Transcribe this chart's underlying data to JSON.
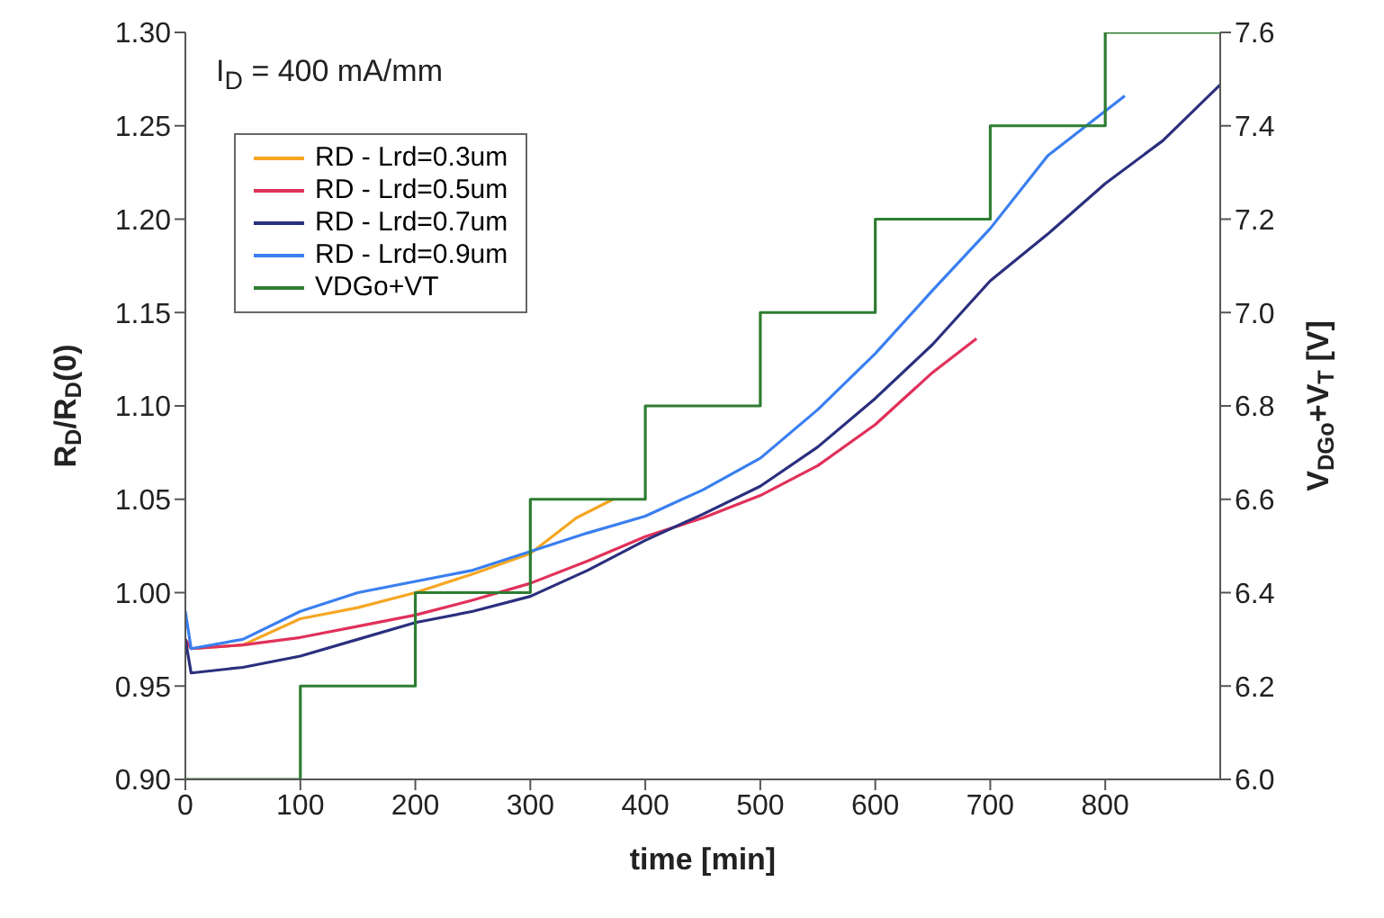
{
  "chart_data": {
    "type": "line",
    "xlabel": "time [min]",
    "ylabel": "R$_{D}$/R$_{D}$(0)",
    "y2label": "V$_{DGo}$+V$_{T}$  [V]",
    "annotations": [
      "I$_{D}$ = 400 mA/mm"
    ],
    "xlim": [
      0,
      900
    ],
    "xticks": [
      0,
      100,
      200,
      300,
      400,
      500,
      600,
      700,
      800
    ],
    "ylim": [
      0.9,
      1.3
    ],
    "yticks": [
      {
        "value": 0.9,
        "label": "0.90"
      },
      {
        "value": 0.95,
        "label": "0.95"
      },
      {
        "value": 1.0,
        "label": "1.00"
      },
      {
        "value": 1.05,
        "label": "1.05"
      },
      {
        "value": 1.1,
        "label": "1.10"
      },
      {
        "value": 1.15,
        "label": "1.15"
      },
      {
        "value": 1.2,
        "label": "1.20"
      },
      {
        "value": 1.25,
        "label": "1.25"
      },
      {
        "value": 1.3,
        "label": "1.30"
      }
    ],
    "y2lim": [
      6.0,
      7.6
    ],
    "y2ticks": [
      {
        "value": 6.0,
        "label": "6.0"
      },
      {
        "value": 6.2,
        "label": "6.2"
      },
      {
        "value": 6.4,
        "label": "6.4"
      },
      {
        "value": 6.6,
        "label": "6.6"
      },
      {
        "value": 6.8,
        "label": "6.8"
      },
      {
        "value": 7.0,
        "label": "7.0"
      },
      {
        "value": 7.2,
        "label": "7.2"
      },
      {
        "value": 7.4,
        "label": "7.4"
      },
      {
        "value": 7.6,
        "label": "7.6"
      }
    ],
    "grid": false,
    "legend": "top left",
    "marker": "none",
    "line_style": "solid",
    "series": [
      {
        "name": "RD - Lrd=0.3um",
        "color": "#f5a623",
        "x": [
          0,
          5,
          50,
          100,
          150,
          200,
          250,
          300,
          340,
          372
        ],
        "values": [
          0.975,
          0.97,
          0.972,
          0.986,
          0.992,
          1.0,
          1.01,
          1.021,
          1.04,
          1.05
        ]
      },
      {
        "name": "RD - Lrd=0.5um",
        "color": "#e0315a",
        "x": [
          0,
          5,
          50,
          100,
          150,
          200,
          250,
          300,
          350,
          400,
          450,
          500,
          550,
          600,
          650,
          688
        ],
        "values": [
          0.975,
          0.97,
          0.972,
          0.976,
          0.982,
          0.988,
          0.996,
          1.005,
          1.017,
          1.03,
          1.04,
          1.052,
          1.068,
          1.09,
          1.118,
          1.136
        ]
      },
      {
        "name": "RD - Lrd=0.7um",
        "color": "#2b2f7e",
        "x": [
          0,
          5,
          50,
          100,
          150,
          200,
          250,
          300,
          350,
          400,
          450,
          500,
          550,
          600,
          650,
          700,
          750,
          800,
          850,
          900
        ],
        "values": [
          0.975,
          0.957,
          0.96,
          0.966,
          0.975,
          0.984,
          0.99,
          0.998,
          1.012,
          1.028,
          1.042,
          1.057,
          1.078,
          1.104,
          1.133,
          1.167,
          1.192,
          1.219,
          1.242,
          1.272
        ]
      },
      {
        "name": "RD - Lrd=0.9um",
        "color": "#3a7ff0",
        "x": [
          0,
          5,
          50,
          100,
          150,
          200,
          250,
          300,
          350,
          400,
          450,
          500,
          550,
          600,
          650,
          700,
          750,
          817
        ],
        "values": [
          0.99,
          0.97,
          0.975,
          0.99,
          1.0,
          1.006,
          1.012,
          1.022,
          1.032,
          1.041,
          1.055,
          1.072,
          1.098,
          1.128,
          1.162,
          1.195,
          1.234,
          1.266
        ]
      },
      {
        "name": "VDGo+VT",
        "type": "step",
        "axis": "y2",
        "color": "#2e7d32",
        "x": [
          0,
          100,
          200,
          300,
          400,
          500,
          600,
          700,
          800,
          900
        ],
        "values": [
          6.0,
          6.2,
          6.4,
          6.6,
          6.8,
          7.0,
          7.2,
          7.4,
          7.6,
          7.6
        ]
      }
    ]
  }
}
